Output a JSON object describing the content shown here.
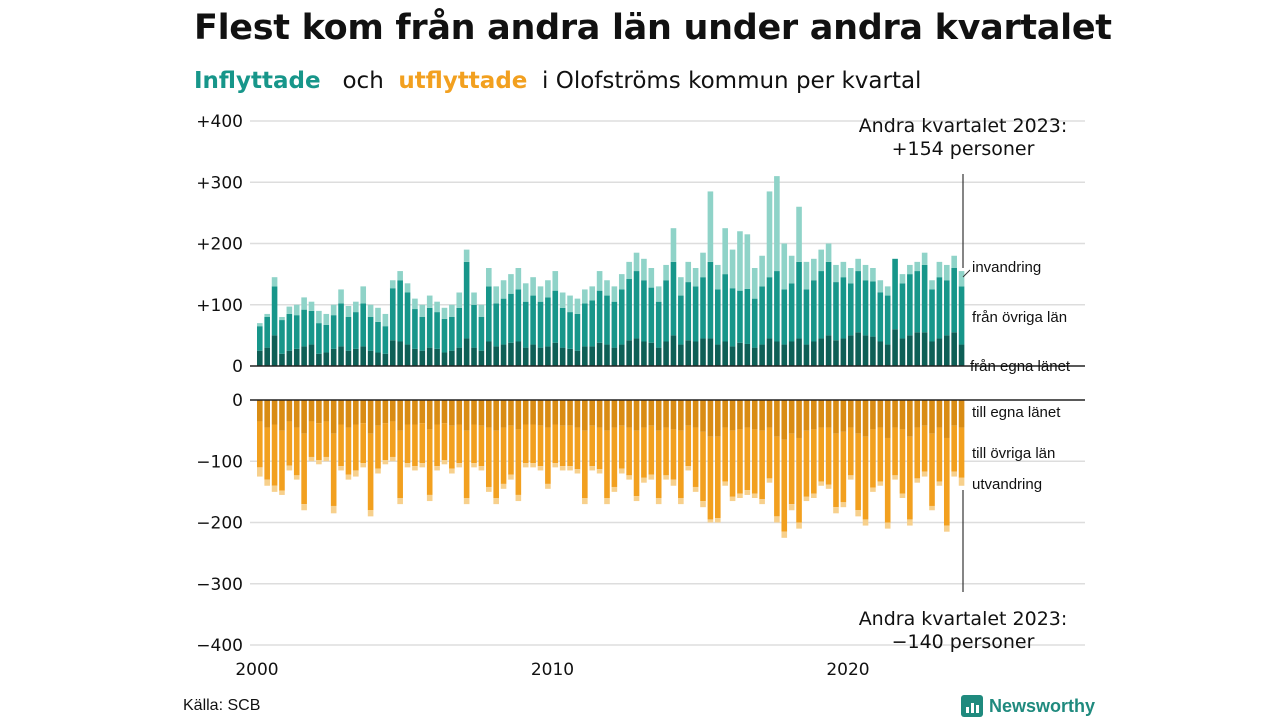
{
  "title": "Flest kom från andra län under andra kvartalet",
  "subtitle": {
    "in_word": "Inflyttade",
    "and_word": "och",
    "out_word": "utflyttade",
    "rest": "i Olofströms  kommun  per  kvartal"
  },
  "source": "Källa: SCB",
  "brand": "Newsworthy",
  "colors": {
    "in_own_county": "#0e5f56",
    "in_other_counties": "#17968a",
    "in_immigration": "#8fd3c8",
    "out_own_county": "#d98c14",
    "out_other_counties": "#f2a01f",
    "out_emigration": "#f7d08c"
  },
  "chart_data": {
    "type": "bar",
    "stacked": true,
    "title": "Flest kom från andra län under andra kvartalet",
    "x_start": "2000 Q1",
    "x_end": "2023 Q2",
    "x_ticks": [
      "2000",
      "2010",
      "2020"
    ],
    "top_panel": {
      "ylim": [
        0,
        400
      ],
      "y_ticks": [
        "0",
        "+100",
        "+200",
        "+300",
        "+400"
      ],
      "series_labels": [
        "från egna länet",
        "från övriga län",
        "invandring"
      ],
      "totals": [
        70,
        85,
        145,
        80,
        97,
        100,
        112,
        105,
        90,
        85,
        100,
        125,
        98,
        105,
        130,
        100,
        95,
        85,
        140,
        155,
        135,
        110,
        100,
        115,
        105,
        95,
        100,
        120,
        190,
        120,
        100,
        160,
        130,
        140,
        150,
        160,
        135,
        145,
        130,
        140,
        155,
        120,
        115,
        110,
        125,
        130,
        155,
        140,
        130,
        150,
        170,
        185,
        175,
        160,
        130,
        165,
        225,
        145,
        170,
        160,
        185,
        285,
        165,
        225,
        190,
        220,
        215,
        160,
        180,
        285,
        310,
        200,
        180,
        260,
        170,
        175,
        190,
        200,
        165,
        170,
        160,
        175,
        165,
        160,
        140,
        130,
        170,
        150,
        165,
        170,
        185,
        140,
        170,
        165,
        180,
        155
      ],
      "fran_egna_lanet": [
        25,
        30,
        50,
        20,
        25,
        28,
        32,
        35,
        20,
        22,
        28,
        32,
        25,
        28,
        32,
        25,
        22,
        20,
        42,
        40,
        35,
        28,
        25,
        30,
        28,
        22,
        25,
        30,
        45,
        30,
        25,
        40,
        32,
        35,
        38,
        40,
        30,
        35,
        30,
        32,
        38,
        30,
        28,
        25,
        32,
        32,
        38,
        35,
        30,
        35,
        42,
        45,
        40,
        38,
        30,
        40,
        50,
        35,
        42,
        40,
        45,
        45,
        35,
        40,
        32,
        38,
        36,
        30,
        35,
        45,
        40,
        35,
        40,
        45,
        35,
        40,
        45,
        50,
        42,
        45,
        50,
        55,
        50,
        48,
        40,
        35,
        60,
        45,
        50,
        55,
        55,
        40,
        45,
        50,
        55,
        35
      ],
      "fran_ovriga_lan": [
        40,
        50,
        80,
        55,
        60,
        55,
        60,
        55,
        50,
        45,
        55,
        70,
        55,
        60,
        70,
        55,
        50,
        45,
        85,
        100,
        85,
        65,
        55,
        65,
        60,
        55,
        55,
        65,
        125,
        70,
        55,
        90,
        70,
        75,
        80,
        85,
        75,
        80,
        75,
        80,
        85,
        65,
        60,
        60,
        70,
        75,
        85,
        80,
        75,
        90,
        100,
        110,
        100,
        90,
        75,
        100,
        120,
        80,
        95,
        90,
        100,
        125,
        90,
        110,
        95,
        85,
        90,
        80,
        95,
        100,
        115,
        90,
        95,
        125,
        90,
        100,
        110,
        120,
        95,
        100,
        85,
        100,
        90,
        90,
        80,
        80,
        115,
        90,
        100,
        100,
        110,
        85,
        100,
        90,
        105,
        95
      ],
      "invandring": [
        5,
        5,
        15,
        5,
        12,
        17,
        20,
        15,
        20,
        18,
        17,
        23,
        18,
        17,
        28,
        20,
        23,
        20,
        13,
        15,
        15,
        17,
        20,
        20,
        17,
        18,
        20,
        25,
        20,
        20,
        20,
        30,
        28,
        30,
        32,
        35,
        30,
        30,
        25,
        28,
        32,
        25,
        27,
        25,
        23,
        23,
        32,
        25,
        25,
        25,
        28,
        30,
        35,
        32,
        25,
        25,
        55,
        30,
        33,
        30,
        40,
        115,
        40,
        75,
        63,
        97,
        89,
        50,
        50,
        140,
        155,
        75,
        45,
        90,
        45,
        35,
        35,
        30,
        28,
        25,
        25,
        20,
        25,
        22,
        20,
        15,
        -5,
        15,
        15,
        15,
        20,
        15,
        25,
        25,
        20,
        25
      ]
    },
    "bottom_panel": {
      "ylim": [
        -400,
        0
      ],
      "y_ticks": [
        "0",
        "−100",
        "−200",
        "−300",
        "−400"
      ],
      "series_labels": [
        "till egna länet",
        "till övriga län",
        "utvandring"
      ],
      "totals": [
        -125,
        -140,
        -150,
        -155,
        -115,
        -130,
        -180,
        -100,
        -105,
        -100,
        -185,
        -115,
        -130,
        -125,
        -110,
        -190,
        -120,
        -105,
        -100,
        -170,
        -110,
        -115,
        -110,
        -165,
        -115,
        -105,
        -120,
        -110,
        -170,
        -110,
        -115,
        -150,
        -170,
        -145,
        -130,
        -165,
        -110,
        -110,
        -115,
        -145,
        -110,
        -115,
        -115,
        -120,
        -170,
        -115,
        -120,
        -170,
        -150,
        -120,
        -130,
        -165,
        -135,
        -130,
        -170,
        -130,
        -140,
        -170,
        -115,
        -150,
        -175,
        -200,
        -200,
        -140,
        -165,
        -160,
        -155,
        -160,
        -170,
        -135,
        -200,
        -225,
        -180,
        -210,
        -165,
        -160,
        -140,
        -145,
        -185,
        -175,
        -130,
        -190,
        -205,
        -150,
        -140,
        -210,
        -130,
        -160,
        -205,
        -135,
        -125,
        -180,
        -140,
        -215,
        -125,
        -140
      ],
      "till_egna_lanet": [
        35,
        45,
        40,
        50,
        35,
        45,
        55,
        35,
        38,
        35,
        55,
        40,
        45,
        40,
        38,
        55,
        42,
        38,
        35,
        50,
        40,
        40,
        38,
        48,
        40,
        38,
        42,
        40,
        50,
        40,
        42,
        45,
        50,
        45,
        42,
        48,
        40,
        40,
        42,
        45,
        40,
        42,
        42,
        45,
        50,
        42,
        45,
        50,
        45,
        42,
        45,
        50,
        45,
        42,
        50,
        45,
        48,
        50,
        42,
        45,
        52,
        60,
        60,
        45,
        50,
        48,
        45,
        48,
        50,
        45,
        60,
        65,
        55,
        62,
        50,
        48,
        45,
        45,
        55,
        52,
        45,
        55,
        60,
        48,
        45,
        62,
        45,
        48,
        60,
        45,
        42,
        55,
        45,
        62,
        42,
        45
      ],
      "till_ovriga_lan": [
        75,
        85,
        100,
        98,
        72,
        78,
        115,
        58,
        60,
        58,
        118,
        68,
        77,
        75,
        65,
        125,
        70,
        60,
        58,
        110,
        63,
        68,
        65,
        107,
        68,
        60,
        70,
        63,
        110,
        63,
        66,
        97,
        110,
        92,
        80,
        107,
        63,
        63,
        66,
        92,
        63,
        66,
        66,
        68,
        110,
        66,
        68,
        110,
        97,
        70,
        78,
        107,
        82,
        80,
        110,
        78,
        82,
        110,
        66,
        97,
        113,
        135,
        133,
        88,
        108,
        105,
        102,
        105,
        112,
        83,
        130,
        150,
        115,
        138,
        108,
        105,
        88,
        93,
        120,
        115,
        78,
        125,
        135,
        95,
        88,
        138,
        78,
        105,
        135,
        83,
        75,
        118,
        88,
        143,
        75,
        82
      ],
      "utvandring": [
        15,
        10,
        10,
        7,
        8,
        7,
        10,
        7,
        7,
        7,
        12,
        7,
        8,
        10,
        7,
        10,
        8,
        7,
        7,
        10,
        7,
        7,
        7,
        10,
        7,
        7,
        8,
        7,
        10,
        7,
        7,
        8,
        10,
        8,
        8,
        10,
        7,
        7,
        7,
        8,
        7,
        7,
        7,
        7,
        10,
        7,
        7,
        10,
        8,
        8,
        7,
        8,
        8,
        8,
        10,
        7,
        10,
        10,
        7,
        8,
        10,
        5,
        7,
        7,
        7,
        7,
        8,
        7,
        8,
        7,
        10,
        10,
        10,
        10,
        7,
        7,
        7,
        7,
        10,
        8,
        7,
        10,
        10,
        7,
        7,
        10,
        7,
        7,
        10,
        7,
        8,
        7,
        7,
        10,
        8,
        13
      ]
    },
    "annotations": [
      {
        "text_lines": [
          "Andra kvartalet 2023:",
          "+154 personer"
        ]
      },
      {
        "text_lines": [
          "Andra kvartalet 2023:",
          "−140 personer"
        ]
      }
    ]
  }
}
